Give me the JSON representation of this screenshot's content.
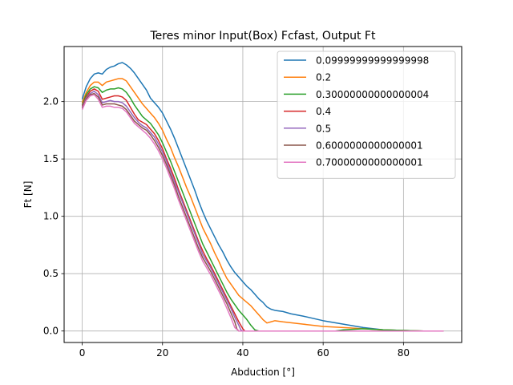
{
  "chart_data": {
    "type": "line",
    "title": "Teres minor Input(Box) Fcfast, Output Ft",
    "xlabel": "Abduction [°]",
    "ylabel": "Ft [N]",
    "xlim": [
      -4.5,
      94.5
    ],
    "ylim": [
      -0.1,
      2.48
    ],
    "xticks": [
      0,
      20,
      40,
      60,
      80
    ],
    "yticks": [
      0.0,
      0.5,
      1.0,
      1.5,
      2.0
    ],
    "xtick_labels": [
      "0",
      "20",
      "40",
      "60",
      "80"
    ],
    "ytick_labels": [
      "0.0",
      "0.5",
      "1.0",
      "1.5",
      "2.0"
    ],
    "grid": true,
    "legend_position": "top-right",
    "series": [
      {
        "name": "0.09999999999999998",
        "color": "#1f77b4",
        "x": [
          0,
          1,
          2,
          3,
          4,
          5,
          6,
          7,
          8,
          9,
          10,
          11,
          12,
          13,
          14,
          15,
          16,
          17,
          18,
          19,
          20,
          21,
          22,
          23,
          24,
          25,
          26,
          27,
          28,
          29,
          30,
          31,
          32,
          33,
          34,
          35,
          36,
          37,
          38,
          39,
          40,
          41,
          42,
          43,
          44,
          45,
          46,
          47,
          48,
          50,
          52,
          55,
          60,
          65,
          70,
          75,
          80,
          85,
          90
        ],
        "y": [
          2.02,
          2.13,
          2.2,
          2.24,
          2.25,
          2.24,
          2.28,
          2.3,
          2.31,
          2.33,
          2.34,
          2.32,
          2.29,
          2.25,
          2.2,
          2.15,
          2.1,
          2.03,
          1.99,
          1.95,
          1.9,
          1.83,
          1.76,
          1.68,
          1.59,
          1.5,
          1.41,
          1.32,
          1.23,
          1.13,
          1.04,
          0.96,
          0.89,
          0.82,
          0.75,
          0.69,
          0.62,
          0.56,
          0.51,
          0.47,
          0.43,
          0.39,
          0.36,
          0.32,
          0.28,
          0.25,
          0.21,
          0.19,
          0.18,
          0.17,
          0.15,
          0.13,
          0.09,
          0.06,
          0.03,
          0.01,
          0.005,
          0.0,
          0.0
        ]
      },
      {
        "name": "0.2",
        "color": "#ff7f0e",
        "x": [
          0,
          1,
          2,
          3,
          4,
          5,
          6,
          7,
          8,
          9,
          10,
          11,
          12,
          13,
          14,
          15,
          16,
          17,
          18,
          19,
          20,
          21,
          22,
          23,
          24,
          25,
          26,
          27,
          28,
          29,
          30,
          31,
          32,
          33,
          34,
          35,
          36,
          37,
          38,
          39,
          40,
          41,
          42,
          43,
          44,
          45,
          46,
          47,
          48,
          50,
          55,
          60,
          65,
          70,
          75,
          80,
          85,
          90
        ],
        "y": [
          1.99,
          2.08,
          2.14,
          2.17,
          2.17,
          2.14,
          2.17,
          2.18,
          2.19,
          2.2,
          2.2,
          2.18,
          2.13,
          2.08,
          2.03,
          1.98,
          1.94,
          1.9,
          1.86,
          1.81,
          1.75,
          1.67,
          1.6,
          1.51,
          1.43,
          1.34,
          1.25,
          1.17,
          1.08,
          0.99,
          0.9,
          0.83,
          0.76,
          0.68,
          0.61,
          0.53,
          0.46,
          0.41,
          0.36,
          0.31,
          0.28,
          0.25,
          0.22,
          0.18,
          0.14,
          0.1,
          0.07,
          0.08,
          0.09,
          0.08,
          0.06,
          0.04,
          0.03,
          0.02,
          0.01,
          0.005,
          0.0,
          0.0
        ]
      },
      {
        "name": "0.30000000000000004",
        "color": "#2ca02c",
        "x": [
          0,
          1,
          2,
          3,
          4,
          5,
          6,
          7,
          8,
          9,
          10,
          11,
          12,
          13,
          14,
          15,
          16,
          17,
          18,
          19,
          20,
          21,
          22,
          23,
          24,
          25,
          26,
          27,
          28,
          29,
          30,
          31,
          32,
          33,
          34,
          35,
          36,
          37,
          38,
          39,
          40,
          41,
          42,
          43,
          44,
          50,
          60,
          63,
          65,
          70,
          75,
          80,
          85,
          90
        ],
        "y": [
          1.97,
          2.06,
          2.11,
          2.13,
          2.12,
          2.08,
          2.1,
          2.11,
          2.11,
          2.12,
          2.11,
          2.08,
          2.03,
          1.97,
          1.92,
          1.87,
          1.84,
          1.81,
          1.76,
          1.71,
          1.64,
          1.56,
          1.48,
          1.39,
          1.3,
          1.21,
          1.12,
          1.03,
          0.94,
          0.85,
          0.76,
          0.69,
          0.62,
          0.55,
          0.48,
          0.41,
          0.34,
          0.28,
          0.23,
          0.18,
          0.14,
          0.1,
          0.05,
          0.01,
          0.0,
          0.0,
          0.0,
          0.0,
          0.01,
          0.02,
          0.01,
          0.005,
          0.0,
          0.0
        ]
      },
      {
        "name": "0.4",
        "color": "#d62728",
        "x": [
          0,
          1,
          2,
          3,
          4,
          5,
          6,
          7,
          8,
          9,
          10,
          11,
          12,
          13,
          14,
          15,
          16,
          17,
          18,
          19,
          20,
          21,
          22,
          23,
          24,
          25,
          26,
          27,
          28,
          29,
          30,
          31,
          32,
          33,
          34,
          35,
          36,
          37,
          38,
          39,
          40,
          40.5,
          41,
          50,
          60,
          70,
          80,
          90
        ],
        "y": [
          1.96,
          2.04,
          2.09,
          2.11,
          2.09,
          2.02,
          2.03,
          2.04,
          2.05,
          2.05,
          2.04,
          2.01,
          1.95,
          1.89,
          1.84,
          1.82,
          1.8,
          1.76,
          1.72,
          1.66,
          1.59,
          1.5,
          1.42,
          1.33,
          1.23,
          1.14,
          1.05,
          0.96,
          0.87,
          0.78,
          0.7,
          0.63,
          0.57,
          0.5,
          0.43,
          0.36,
          0.29,
          0.22,
          0.15,
          0.08,
          0.02,
          0.0,
          0.0,
          0.0,
          0.0,
          0.0,
          0.0,
          0.0
        ]
      },
      {
        "name": "0.5",
        "color": "#9467bd",
        "x": [
          0,
          1,
          2,
          3,
          4,
          5,
          6,
          7,
          8,
          9,
          10,
          11,
          12,
          13,
          14,
          15,
          16,
          17,
          18,
          19,
          20,
          21,
          22,
          23,
          24,
          25,
          26,
          27,
          28,
          29,
          30,
          31,
          32,
          33,
          34,
          35,
          36,
          37,
          38,
          39,
          39.5,
          40,
          50,
          60,
          70,
          80,
          90
        ],
        "y": [
          1.95,
          2.03,
          2.07,
          2.09,
          2.06,
          1.99,
          2.0,
          2.01,
          2.0,
          2.0,
          1.99,
          1.96,
          1.91,
          1.86,
          1.82,
          1.79,
          1.77,
          1.73,
          1.69,
          1.63,
          1.56,
          1.48,
          1.39,
          1.3,
          1.21,
          1.12,
          1.03,
          0.94,
          0.85,
          0.76,
          0.67,
          0.61,
          0.55,
          0.48,
          0.41,
          0.34,
          0.27,
          0.2,
          0.12,
          0.05,
          0.01,
          0.0,
          0.0,
          0.0,
          0.0,
          0.0,
          0.0
        ]
      },
      {
        "name": "0.6000000000000001",
        "color": "#8c564b",
        "x": [
          0,
          1,
          2,
          3,
          4,
          5,
          6,
          7,
          8,
          9,
          10,
          11,
          12,
          13,
          14,
          15,
          16,
          17,
          18,
          19,
          20,
          21,
          22,
          23,
          24,
          25,
          26,
          27,
          28,
          29,
          30,
          31,
          32,
          33,
          34,
          35,
          36,
          37,
          38,
          38.5,
          39,
          50,
          60,
          70,
          80,
          90
        ],
        "y": [
          1.94,
          2.02,
          2.06,
          2.07,
          2.04,
          1.97,
          1.98,
          1.98,
          1.98,
          1.97,
          1.96,
          1.93,
          1.88,
          1.83,
          1.8,
          1.77,
          1.75,
          1.71,
          1.66,
          1.6,
          1.53,
          1.45,
          1.36,
          1.27,
          1.17,
          1.08,
          0.99,
          0.9,
          0.81,
          0.72,
          0.64,
          0.58,
          0.52,
          0.45,
          0.38,
          0.31,
          0.24,
          0.16,
          0.08,
          0.02,
          0.0,
          0.0,
          0.0,
          0.0,
          0.0,
          0.0
        ]
      },
      {
        "name": "0.7000000000000001",
        "color": "#e377c2",
        "x": [
          0,
          1,
          2,
          3,
          4,
          5,
          6,
          7,
          8,
          9,
          10,
          11,
          12,
          13,
          14,
          15,
          16,
          17,
          18,
          19,
          20,
          21,
          22,
          23,
          24,
          25,
          26,
          27,
          28,
          29,
          30,
          31,
          32,
          33,
          34,
          35,
          36,
          37,
          38,
          39,
          50,
          60,
          70,
          80,
          90
        ],
        "y": [
          1.93,
          2.01,
          2.05,
          2.06,
          2.02,
          1.95,
          1.96,
          1.96,
          1.95,
          1.95,
          1.94,
          1.91,
          1.86,
          1.81,
          1.78,
          1.75,
          1.72,
          1.68,
          1.63,
          1.57,
          1.5,
          1.42,
          1.33,
          1.24,
          1.14,
          1.05,
          0.96,
          0.87,
          0.78,
          0.69,
          0.61,
          0.55,
          0.49,
          0.42,
          0.35,
          0.28,
          0.2,
          0.12,
          0.03,
          0.0,
          0.0,
          0.0,
          0.0,
          0.0,
          0.0
        ]
      }
    ]
  }
}
